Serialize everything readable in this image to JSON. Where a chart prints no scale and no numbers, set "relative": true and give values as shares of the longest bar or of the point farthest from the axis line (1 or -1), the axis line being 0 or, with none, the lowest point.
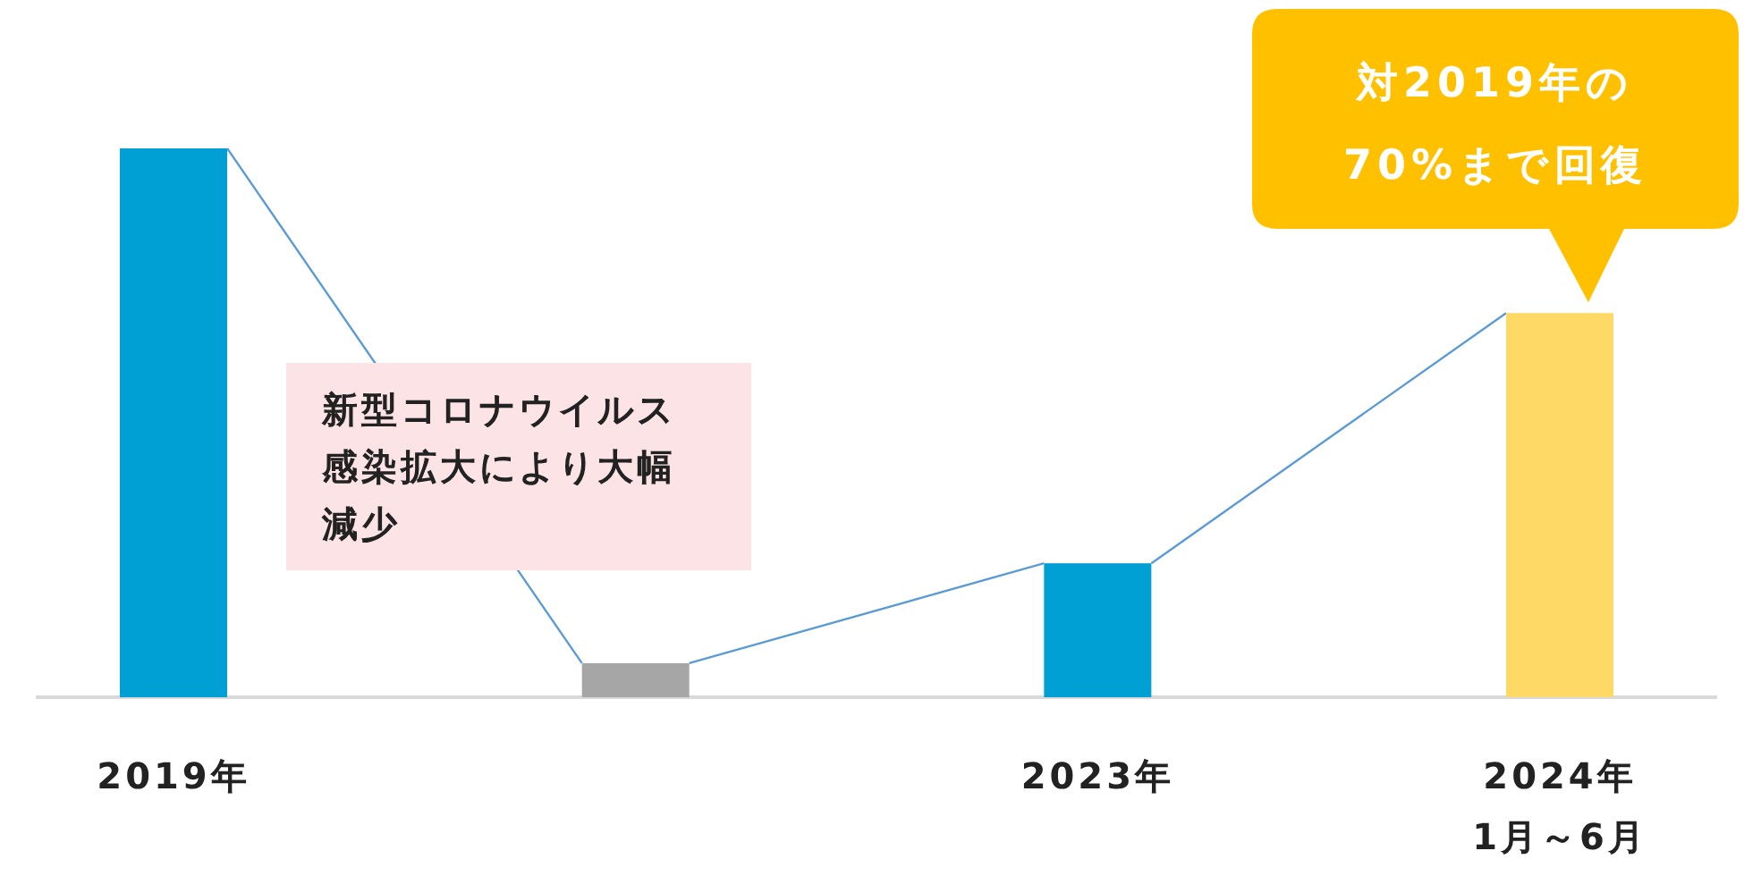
{
  "chart_data": {
    "type": "bar",
    "relative": true,
    "categories": [
      "2019年",
      null,
      "2023年",
      "2024年\n1月～6月"
    ],
    "values": [
      1,
      0.062,
      0.244,
      0.7
    ],
    "colors": [
      "#009fd4",
      "#a6a6a6",
      "#009fd4",
      "#ffd966"
    ],
    "annotations": [
      "新型コロナウイルス感染拡大により大幅減少",
      "対2019年の70%まで回復"
    ]
  }
}
